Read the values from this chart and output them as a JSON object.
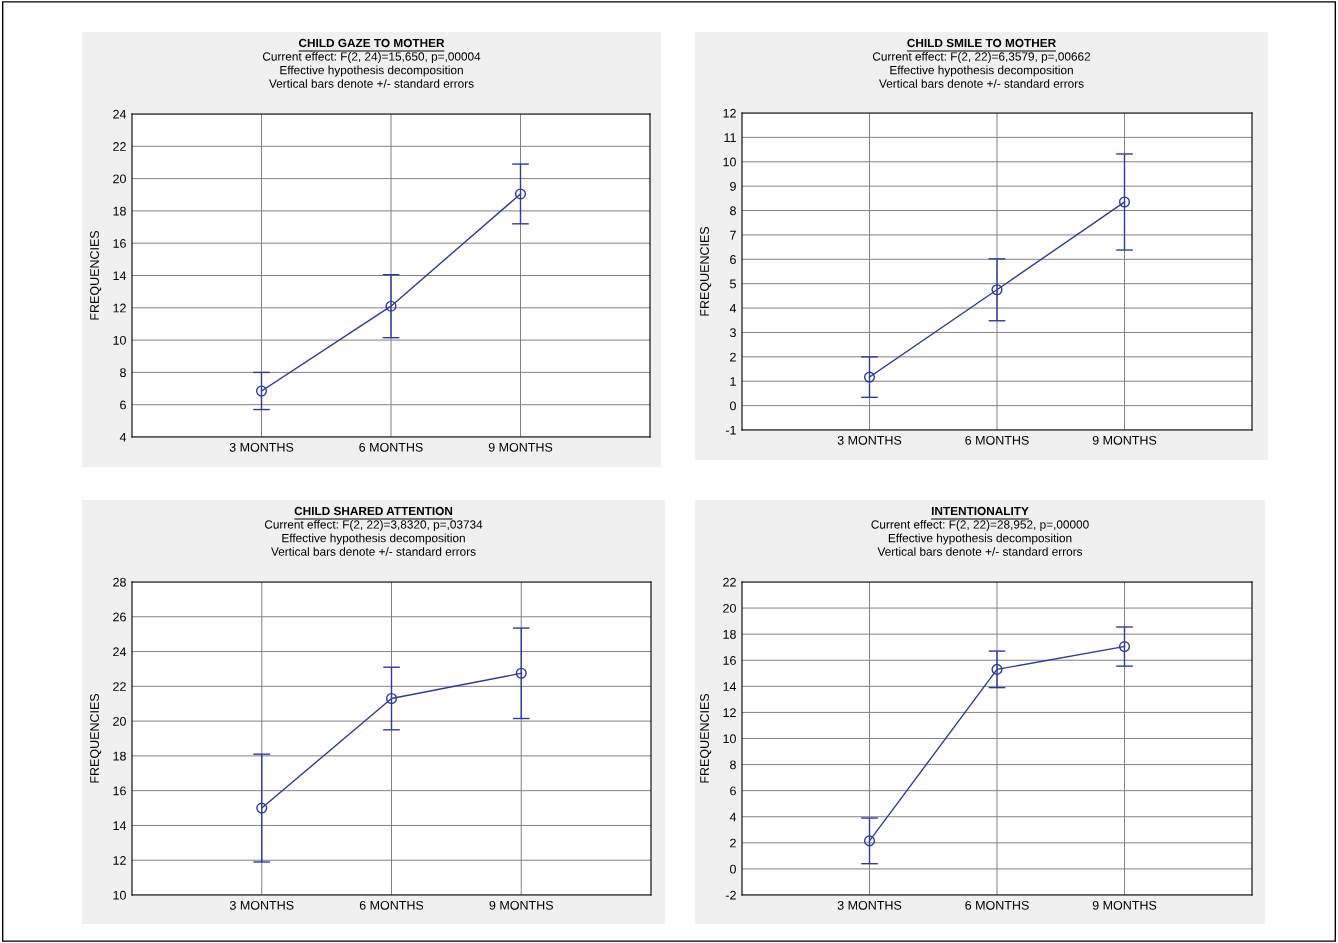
{
  "chart_data": [
    {
      "type": "line",
      "title": "CHILD GAZE TO MOTHER",
      "subtitle": "Current effect: F(2, 24)=15,650, p=,00004\nEffective hypothesis decomposition\nVertical bars denote +/- standard errors",
      "ylabel": "FREQUENCIES",
      "categories": [
        "3 MONTHS",
        "6 MONTHS",
        "9 MONTHS"
      ],
      "series": [
        {
          "color": "#2e3b9e",
          "values": [
            6.85,
            12.1,
            19.05
          ],
          "errors": [
            1.15,
            1.95,
            1.85
          ]
        }
      ],
      "ylim": [
        4,
        24
      ],
      "yticks": [
        4,
        6,
        8,
        10,
        12,
        14,
        16,
        18,
        20,
        22,
        24
      ],
      "grid": true,
      "marker": "circle",
      "line_style": "solid"
    },
    {
      "type": "line",
      "title": "CHILD SMILE TO MOTHER",
      "subtitle": "Current effect: F(2, 22)=6,3579, p=,00662\nEffective hypothesis decomposition\nVertical bars denote +/- standard errors",
      "ylabel": "FREQUENCIES",
      "categories": [
        "3 MONTHS",
        "6 MONTHS",
        "9 MONTHS"
      ],
      "series": [
        {
          "color": "#2e3b9e",
          "values": [
            1.17,
            4.75,
            8.35
          ],
          "errors": [
            0.83,
            1.27,
            1.97
          ]
        }
      ],
      "ylim": [
        -1,
        12
      ],
      "yticks": [
        -1,
        0,
        1,
        2,
        3,
        4,
        5,
        6,
        7,
        8,
        9,
        10,
        11,
        12
      ],
      "grid": true,
      "marker": "circle",
      "line_style": "solid"
    },
    {
      "type": "line",
      "title": "CHILD SHARED ATTENTION",
      "subtitle": "Current effect: F(2, 22)=3,8320, p=,03734\nEffective hypothesis decomposition\nVertical bars denote +/- standard errors",
      "ylabel": "FREQUENCIES",
      "categories": [
        "3 MONTHS",
        "6 MONTHS",
        "9 MONTHS"
      ],
      "series": [
        {
          "color": "#2e3b9e",
          "values": [
            15.0,
            21.3,
            22.75
          ],
          "errors": [
            3.1,
            1.8,
            2.6
          ]
        }
      ],
      "ylim": [
        10,
        28
      ],
      "yticks": [
        10,
        12,
        14,
        16,
        18,
        20,
        22,
        24,
        26,
        28
      ],
      "grid": true,
      "marker": "circle",
      "line_style": "solid"
    },
    {
      "type": "line",
      "title": "INTENTIONALITY",
      "subtitle": "Current effect: F(2, 22)=28,952, p=,00000\nEffective hypothesis decomposition\nVertical bars denote +/- standard errors",
      "ylabel": "FREQUENCIES",
      "categories": [
        "3 MONTHS",
        "6 MONTHS",
        "9 MONTHS"
      ],
      "series": [
        {
          "color": "#2e3b9e",
          "values": [
            2.15,
            15.3,
            17.05
          ],
          "errors": [
            1.75,
            1.4,
            1.5
          ]
        }
      ],
      "ylim": [
        -2,
        22
      ],
      "yticks": [
        -2,
        0,
        2,
        4,
        6,
        8,
        10,
        12,
        14,
        16,
        18,
        20,
        22
      ],
      "grid": true,
      "marker": "circle",
      "line_style": "solid"
    }
  ]
}
